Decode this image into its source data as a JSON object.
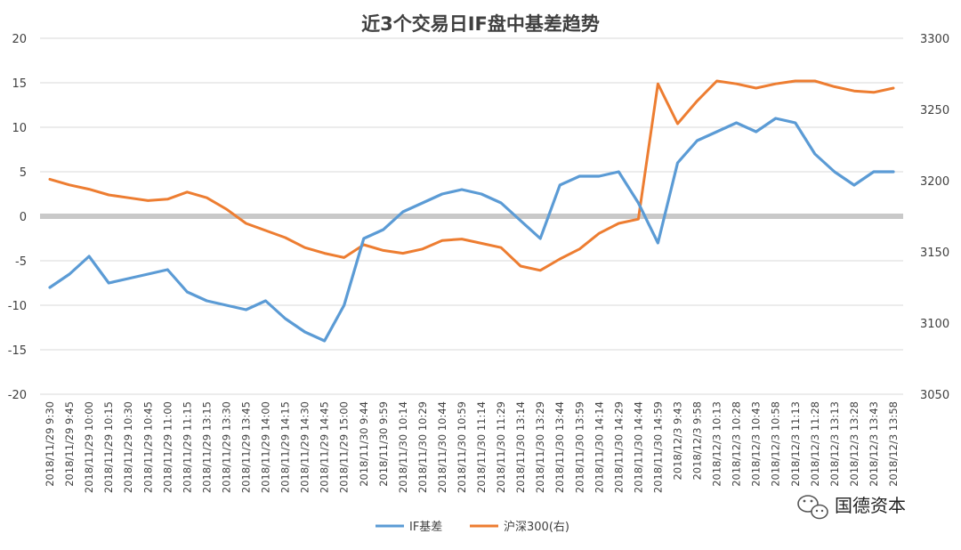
{
  "chart_data": {
    "type": "line",
    "title": "近3个交易日IF盘中基差趋势",
    "grid": true,
    "legend_position": "bottom",
    "y_left": {
      "ticks": [
        "20",
        "15",
        "10",
        "5",
        "0",
        "-5",
        "-10",
        "-15",
        "-20"
      ],
      "min": -20,
      "max": 20
    },
    "y_right": {
      "ticks": [
        "3300",
        "3250",
        "3200",
        "3150",
        "3100",
        "3050"
      ],
      "min": 3050,
      "max": 3300
    },
    "x_labels": [
      "2018/11/29 9:30",
      "2018/11/29 9:45",
      "2018/11/29 10:00",
      "2018/11/29 10:15",
      "2018/11/29 10:30",
      "2018/11/29 10:45",
      "2018/11/29 11:00",
      "2018/11/29 11:15",
      "2018/11/29 13:15",
      "2018/11/29 13:30",
      "2018/11/29 13:45",
      "2018/11/29 14:00",
      "2018/11/29 14:15",
      "2018/11/29 14:30",
      "2018/11/29 14:45",
      "2018/11/29 15:00",
      "2018/11/30 9:44",
      "2018/11/30 9:59",
      "2018/11/30 10:14",
      "2018/11/30 10:29",
      "2018/11/30 10:44",
      "2018/11/30 10:59",
      "2018/11/30 11:14",
      "2018/11/30 11:29",
      "2018/11/30 13:14",
      "2018/11/30 13:29",
      "2018/11/30 13:44",
      "2018/11/30 13:59",
      "2018/11/30 14:14",
      "2018/11/30 14:29",
      "2018/11/30 14:44",
      "2018/11/30 14:59",
      "2018/12/3 9:43",
      "2018/12/3 9:58",
      "2018/12/3 10:13",
      "2018/12/3 10:28",
      "2018/12/3 10:43",
      "2018/12/3 10:58",
      "2018/12/3 11:13",
      "2018/12/3 11:28",
      "2018/12/3 13:13",
      "2018/12/3 13:28",
      "2018/12/3 13:43",
      "2018/12/3 13:58"
    ],
    "series": [
      {
        "name": "IF基差",
        "axis": "left",
        "color": "#5B9BD5",
        "values": [
          -8,
          -6.5,
          -4.5,
          -7.5,
          -7,
          -6.5,
          -6,
          -8.5,
          -9.5,
          -10,
          -10.5,
          -9.5,
          -11.5,
          -13,
          -14,
          -10,
          -2.5,
          -1.5,
          0.5,
          1.5,
          2.5,
          3,
          2.5,
          1.5,
          -0.5,
          -2.5,
          3.5,
          4.5,
          4.5,
          5,
          1.5,
          -3,
          6,
          8.5,
          9.5,
          10.5,
          9.5,
          11,
          10.5,
          7,
          5,
          3.5,
          5,
          5
        ]
      },
      {
        "name": "沪深300(右)",
        "axis": "right",
        "color": "#ED7D31",
        "values": [
          3201,
          3197,
          3194,
          3190,
          3188,
          3186,
          3187,
          3192,
          3188,
          3180,
          3170,
          3165,
          3160,
          3153,
          3149,
          3146,
          3155,
          3151,
          3149,
          3152,
          3158,
          3159,
          3156,
          3153,
          3140,
          3137,
          3145,
          3152,
          3163,
          3170,
          3173,
          3268,
          3240,
          3256,
          3270,
          3268,
          3265,
          3268,
          3270,
          3270,
          3266,
          3263,
          3262,
          3265
        ]
      }
    ]
  },
  "watermark": {
    "text": "国德资本",
    "icon": "wechat-icon"
  }
}
